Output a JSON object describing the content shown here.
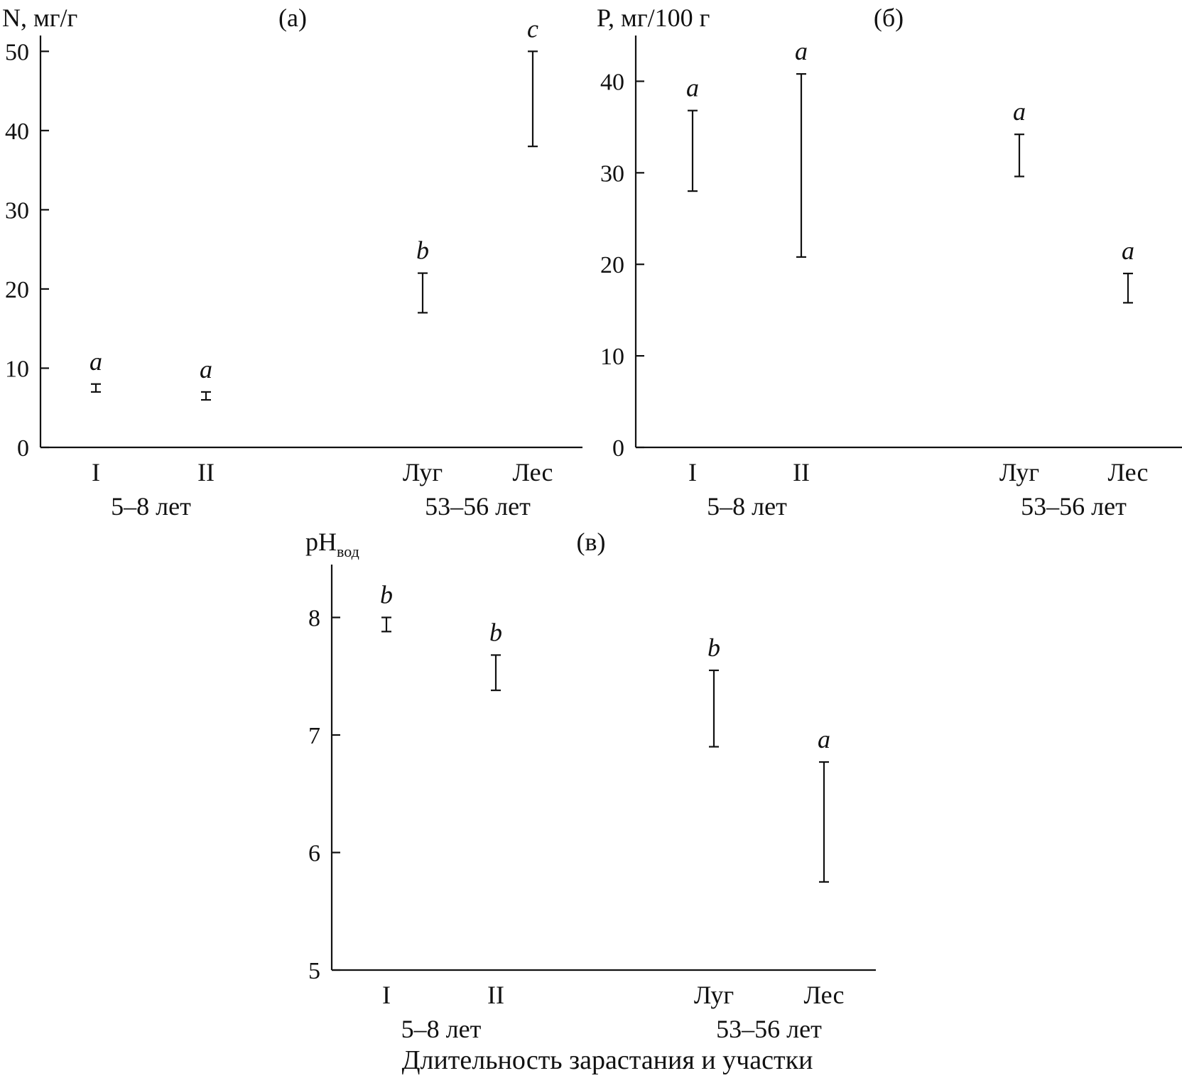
{
  "xlabel": "Длительность зарастания и участки",
  "chart_data": [
    {
      "type": "errorbar",
      "panel_label": "(а)",
      "ylabel": "N, мг/г",
      "ylim": [
        0,
        52
      ],
      "yticks": [
        0,
        10,
        20,
        30,
        40,
        50
      ],
      "categories": [
        "I",
        "II",
        "Луг",
        "Лес"
      ],
      "groups": [
        {
          "label": "5–8 лет",
          "categories": [
            "I",
            "II"
          ]
        },
        {
          "label": "53–56 лет",
          "categories": [
            "Луг",
            "Лес"
          ]
        }
      ],
      "ranges": [
        [
          7.0,
          8.0
        ],
        [
          6.0,
          7.0
        ],
        [
          17.0,
          22.0
        ],
        [
          38.0,
          50.0
        ]
      ],
      "significance": [
        "a",
        "a",
        "b",
        "c"
      ]
    },
    {
      "type": "errorbar",
      "panel_label": "(б)",
      "ylabel": "P, мг/100 г",
      "ylim": [
        0,
        45
      ],
      "yticks": [
        0,
        10,
        20,
        30,
        40
      ],
      "categories": [
        "I",
        "II",
        "Луг",
        "Лес"
      ],
      "groups": [
        {
          "label": "5–8 лет",
          "categories": [
            "I",
            "II"
          ]
        },
        {
          "label": "53–56 лет",
          "categories": [
            "Луг",
            "Лес"
          ]
        }
      ],
      "ranges": [
        [
          28.0,
          36.8
        ],
        [
          20.8,
          40.8
        ],
        [
          29.6,
          34.2
        ],
        [
          15.8,
          19.0
        ]
      ],
      "significance": [
        "a",
        "a",
        "a",
        "a"
      ]
    },
    {
      "type": "errorbar",
      "panel_label": "(в)",
      "ylabel": "pH",
      "ylabel_sub": "вод",
      "ylim": [
        5,
        8.45
      ],
      "yticks": [
        5,
        6,
        7,
        8
      ],
      "categories": [
        "I",
        "II",
        "Луг",
        "Лес"
      ],
      "groups": [
        {
          "label": "5–8 лет",
          "categories": [
            "I",
            "II"
          ]
        },
        {
          "label": "53–56 лет",
          "categories": [
            "Луг",
            "Лес"
          ]
        }
      ],
      "ranges": [
        [
          7.88,
          8.0
        ],
        [
          7.38,
          7.68
        ],
        [
          6.9,
          7.55
        ],
        [
          5.75,
          6.77
        ]
      ],
      "significance": [
        "b",
        "b",
        "b",
        "a"
      ]
    }
  ]
}
